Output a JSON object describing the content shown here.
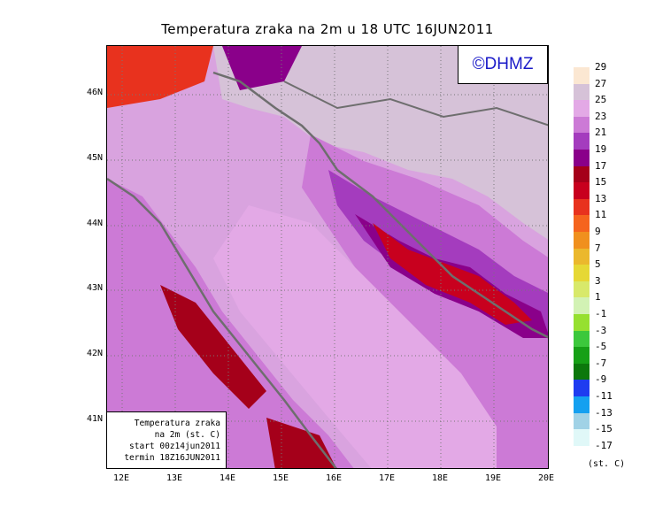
{
  "title": "Temperatura zraka na 2m u 18 UTC 16JUN2011",
  "logo": "©DHMZ",
  "info_box": [
    "Temperatura zraka",
    "na 2m (st. C)",
    "start 00z14jun2011",
    "termin 18Z16JUN2011"
  ],
  "lat_labels": [
    "46N",
    "45N",
    "44N",
    "43N",
    "42N",
    "41N"
  ],
  "lon_labels": [
    "12E",
    "13E",
    "14E",
    "15E",
    "16E",
    "17E",
    "18E",
    "19E",
    "20E"
  ],
  "legend": {
    "unit": "(st. C)",
    "labels": [
      "29",
      "27",
      "25",
      "23",
      "21",
      "19",
      "17",
      "15",
      "13",
      "11",
      "9",
      "7",
      "5",
      "3",
      "1",
      "-1",
      "-3",
      "-5",
      "-7",
      "-9",
      "-11",
      "-13",
      "-15",
      "-17"
    ],
    "colors": [
      "#fbe7d2",
      "#d6c2d8",
      "#e3a9e6",
      "#cc7ad6",
      "#a43cbe",
      "#8a008a",
      "#a5001a",
      "#c8001e",
      "#e8321e",
      "#f5641e",
      "#f0901e",
      "#ebb82d",
      "#e6d835",
      "#d8e96a",
      "#d2f2b4",
      "#96e030",
      "#3cc83c",
      "#16a016",
      "#0c780c",
      "#1e3cf0",
      "#14a0f0",
      "#a0d2e6",
      "#e0f8f8"
    ]
  },
  "colors": {
    "sea": "#d9a3df",
    "land": "#cc7ad6",
    "warm_land": "#e3a9e6",
    "coast": "#6e6e6e"
  }
}
